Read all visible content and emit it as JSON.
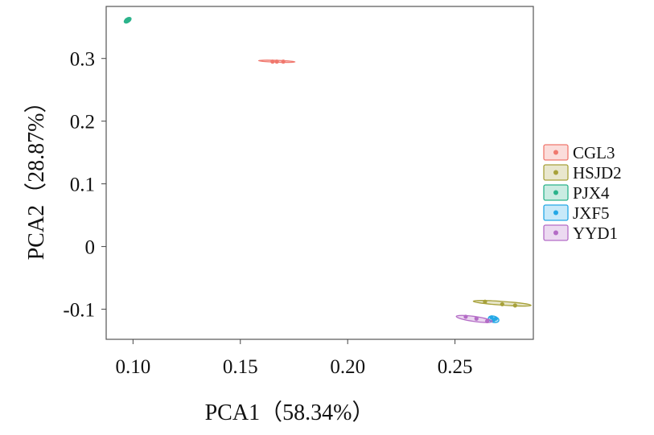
{
  "chart_data": {
    "type": "scatter",
    "xlabel": "PCA1（58.34%）",
    "ylabel": "PCA2（28.87%）",
    "xlim": [
      0.0875,
      0.2865
    ],
    "ylim": [
      -0.148,
      0.383
    ],
    "xticks": [
      {
        "value": 0.1,
        "label": "0.10"
      },
      {
        "value": 0.15,
        "label": "0.15"
      },
      {
        "value": 0.2,
        "label": "0.20"
      },
      {
        "value": 0.25,
        "label": "0.25"
      }
    ],
    "yticks": [
      {
        "value": 0.3,
        "label": "0.3"
      },
      {
        "value": 0.2,
        "label": "0.2"
      },
      {
        "value": 0.1,
        "label": "0.1"
      },
      {
        "value": 0.0,
        "label": "0"
      },
      {
        "value": -0.1,
        "label": "-0.1"
      }
    ],
    "grid": false,
    "legend_position": "right",
    "series": [
      {
        "name": "CGL3",
        "color": "#f0786e",
        "points": [
          [
            0.165,
            0.295
          ],
          [
            0.167,
            0.295
          ],
          [
            0.17,
            0.295
          ]
        ],
        "ellipse": {
          "cx": 0.167,
          "cy": 0.2955,
          "rx": 0.0085,
          "ry": 0.0015,
          "angle_deg": 2
        }
      },
      {
        "name": "HSJD2",
        "color": "#a7a13a",
        "points": [
          [
            0.264,
            -0.088
          ],
          [
            0.272,
            -0.092
          ],
          [
            0.278,
            -0.094
          ]
        ],
        "ellipse": {
          "cx": 0.272,
          "cy": -0.0905,
          "rx": 0.0135,
          "ry": 0.003,
          "angle_deg": 4
        }
      },
      {
        "name": "PJX4",
        "color": "#2bb38b",
        "points": [
          [
            0.097,
            0.36
          ],
          [
            0.098,
            0.362
          ],
          [
            0.097,
            0.361
          ]
        ],
        "ellipse": {
          "cx": 0.0975,
          "cy": 0.361,
          "rx": 0.0018,
          "ry": 0.0035,
          "angle_deg": -35
        }
      },
      {
        "name": "JXF5",
        "color": "#24a8e6",
        "points": [
          [
            0.267,
            -0.113
          ],
          [
            0.268,
            -0.117
          ],
          [
            0.269,
            -0.115
          ]
        ],
        "ellipse": {
          "cx": 0.268,
          "cy": -0.116,
          "rx": 0.0025,
          "ry": 0.005,
          "angle_deg": 15
        }
      },
      {
        "name": "YYD1",
        "color": "#b46cc6",
        "points": [
          [
            0.255,
            -0.112
          ],
          [
            0.26,
            -0.115
          ],
          [
            0.265,
            -0.119
          ]
        ],
        "ellipse": {
          "cx": 0.259,
          "cy": -0.1155,
          "rx": 0.0085,
          "ry": 0.004,
          "angle_deg": 8
        }
      }
    ]
  }
}
